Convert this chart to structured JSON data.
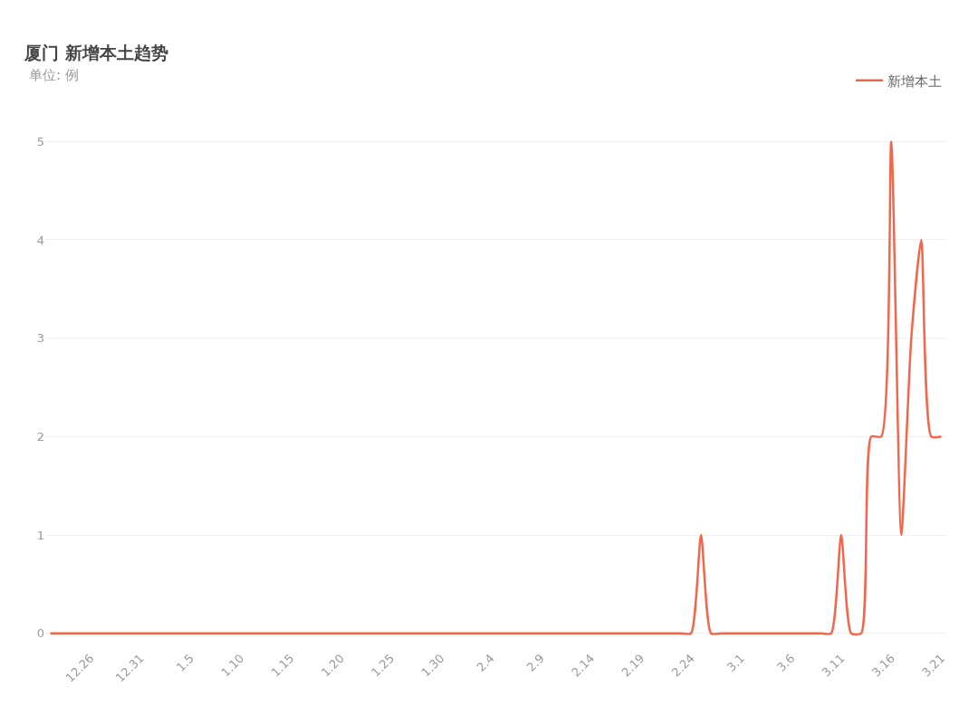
{
  "chart_data": {
    "type": "line",
    "title": "厦门 新增本土趋势",
    "subtitle": "单位: 例",
    "categories": [
      null,
      null,
      null,
      null,
      "12.26",
      null,
      null,
      null,
      null,
      "12.31",
      null,
      null,
      null,
      null,
      "1.5",
      null,
      null,
      null,
      null,
      "1.10",
      null,
      null,
      null,
      null,
      "1.15",
      null,
      null,
      null,
      null,
      "1.20",
      null,
      null,
      null,
      null,
      "1.25",
      null,
      null,
      null,
      null,
      "1.30",
      null,
      null,
      null,
      null,
      "2.4",
      null,
      null,
      null,
      null,
      "2.9",
      null,
      null,
      null,
      null,
      "2.14",
      null,
      null,
      null,
      null,
      "2.19",
      null,
      null,
      null,
      null,
      "2.24",
      null,
      null,
      null,
      null,
      "3.1",
      null,
      null,
      null,
      null,
      "3.6",
      null,
      null,
      null,
      null,
      "3.11",
      null,
      null,
      null,
      null,
      "3.16",
      null,
      null,
      null,
      null,
      "3.21"
    ],
    "series": [
      {
        "name": "新增本土",
        "color": "#f4664a",
        "values": [
          0,
          0,
          0,
          0,
          0,
          0,
          0,
          0,
          0,
          0,
          0,
          0,
          0,
          0,
          0,
          0,
          0,
          0,
          0,
          0,
          0,
          0,
          0,
          0,
          0,
          0,
          0,
          0,
          0,
          0,
          0,
          0,
          0,
          0,
          0,
          0,
          0,
          0,
          0,
          0,
          0,
          0,
          0,
          0,
          0,
          0,
          0,
          0,
          0,
          0,
          0,
          0,
          0,
          0,
          0,
          0,
          0,
          0,
          0,
          0,
          0,
          0,
          0,
          0,
          0,
          1,
          0,
          0,
          0,
          0,
          0,
          0,
          0,
          0,
          0,
          0,
          0,
          0,
          0,
          1,
          0,
          0,
          2,
          2,
          5,
          1,
          3,
          4,
          2,
          2
        ]
      }
    ],
    "ylim": [
      0,
      5
    ],
    "yticks": [
      0,
      1,
      2,
      3,
      4,
      5
    ],
    "grid": "y",
    "legend": "top right",
    "marker": "none",
    "line_style": "solid"
  }
}
